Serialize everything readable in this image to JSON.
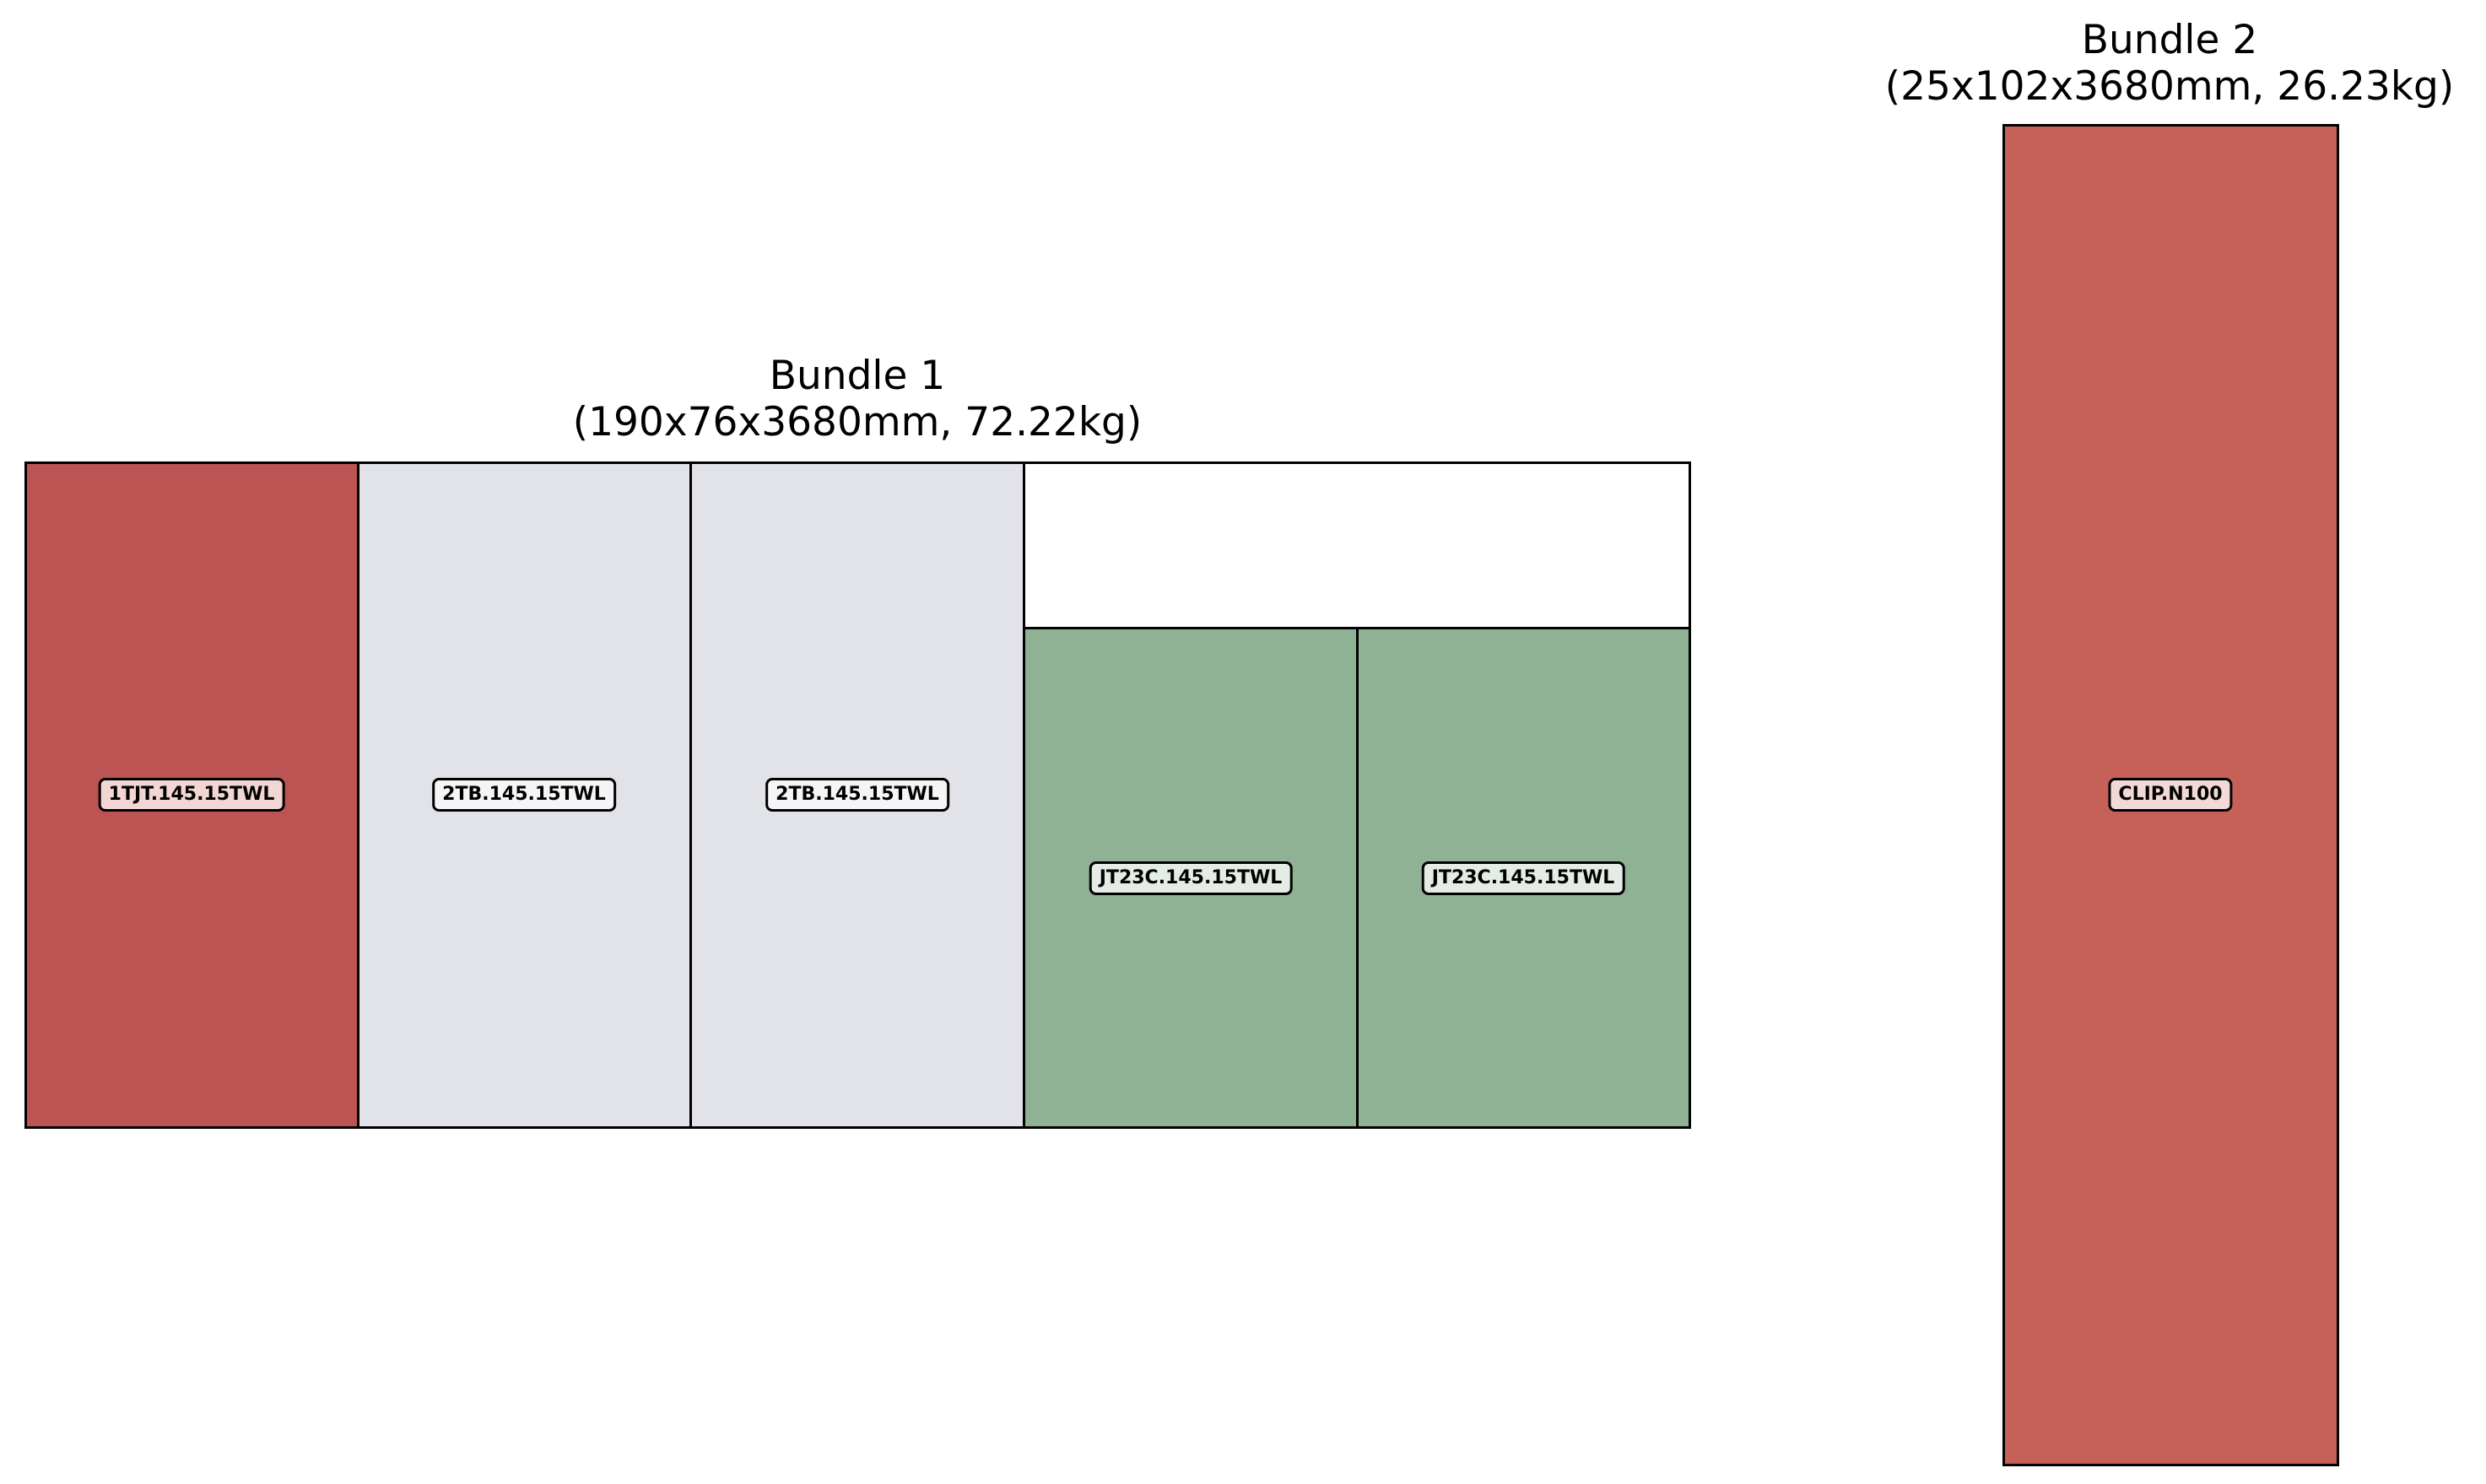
{
  "bundles": [
    {
      "name": "Bundle 1",
      "spec": "(190x76x3680mm, 72.22kg)",
      "pieces": [
        {
          "label": "1TJT.145.15TWL",
          "color": "#bc5454"
        },
        {
          "label": "2TB.145.15TWL",
          "color": "#e2e3e8"
        },
        {
          "label": "2TB.145.15TWL",
          "color": "#e2e3e8"
        },
        {
          "label": "JT23C.145.15TWL",
          "color": "#8fb295"
        },
        {
          "label": "JT23C.145.15TWL",
          "color": "#8fb295"
        }
      ]
    },
    {
      "name": "Bundle 2",
      "spec": "(25x102x3680mm, 26.23kg)",
      "pieces": [
        {
          "label": "CLIP.N100",
          "color": "#c66159"
        }
      ]
    }
  ]
}
